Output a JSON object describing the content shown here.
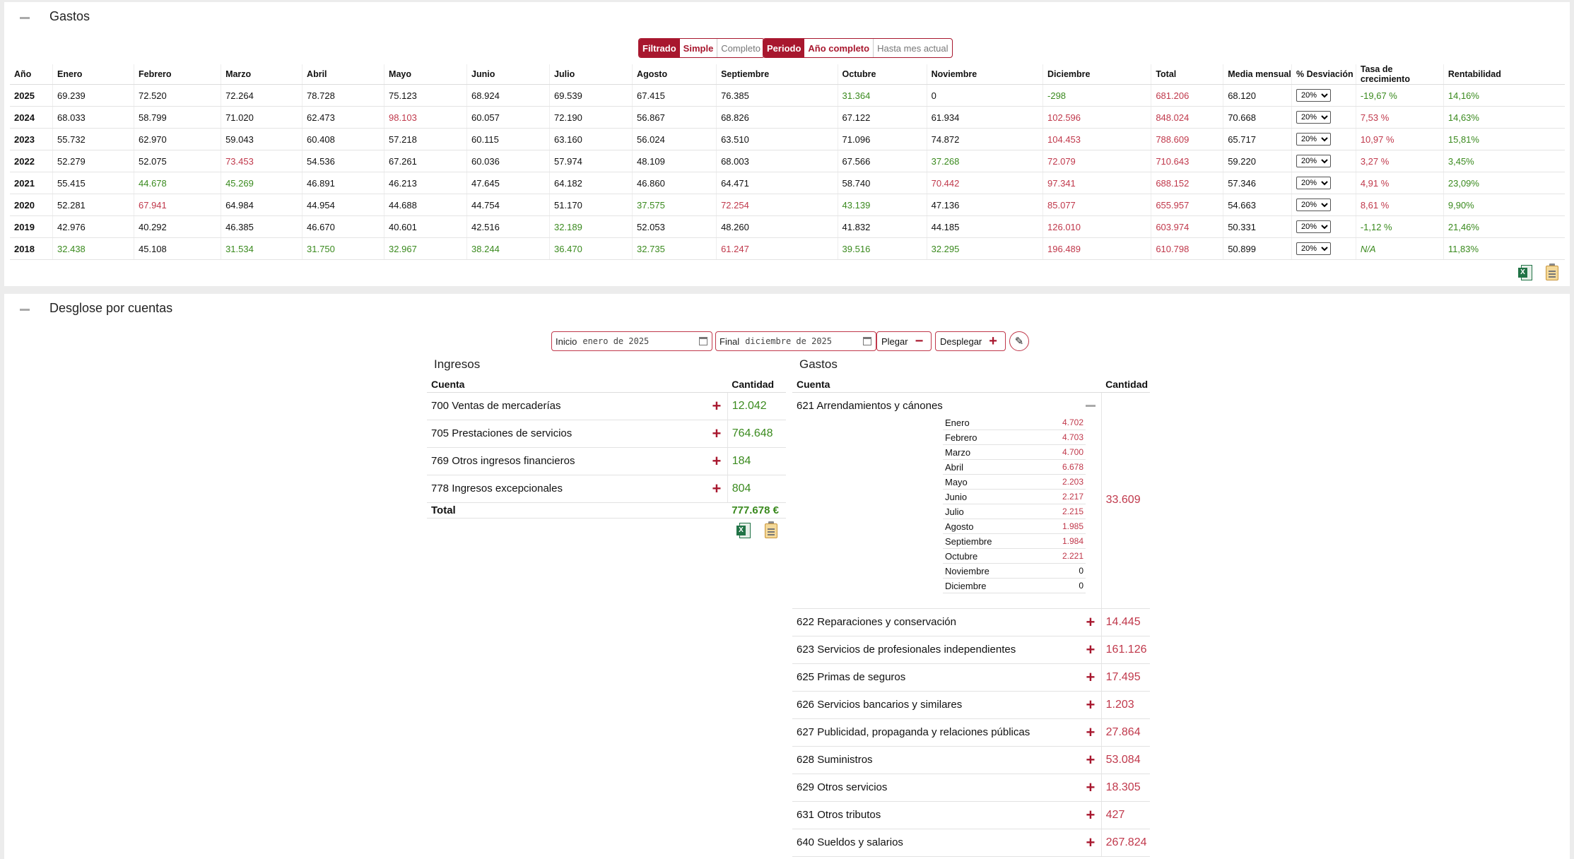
{
  "gastos": {
    "title": "Gastos",
    "filter": {
      "label": "Filtrado",
      "options": [
        "Simple",
        "Completo"
      ],
      "selected": "Simple"
    },
    "period": {
      "label": "Periodo",
      "options": [
        "Año completo",
        "Hasta mes actual"
      ],
      "selected": "Año completo"
    },
    "columns": [
      "Año",
      "Enero",
      "Febrero",
      "Marzo",
      "Abril",
      "Mayo",
      "Junio",
      "Julio",
      "Agosto",
      "Septiembre",
      "Octubre",
      "Noviembre",
      "Diciembre",
      "Total",
      "Media mensual",
      "% Desviación",
      "Tasa de crecimiento",
      "Rentabilidad"
    ],
    "rows": [
      {
        "year": "2025",
        "months": [
          "69.239",
          "72.520",
          "72.264",
          "78.728",
          "75.123",
          "68.924",
          "69.539",
          "67.415",
          "76.385",
          "31.364",
          "0",
          "-298"
        ],
        "mcolors": [
          "",
          "",
          "",
          "",
          "",
          "",
          "",
          "",
          "",
          "g",
          "",
          "g"
        ],
        "total": "681.206",
        "media": "68.120",
        "desv": "20%",
        "tasa": "-19,67 %",
        "tasa_color": "g",
        "rent": "14,16%"
      },
      {
        "year": "2024",
        "months": [
          "68.033",
          "58.799",
          "71.020",
          "62.473",
          "98.103",
          "60.057",
          "72.190",
          "56.867",
          "68.826",
          "67.122",
          "61.934",
          "102.596"
        ],
        "mcolors": [
          "",
          "",
          "",
          "",
          "r",
          "",
          "",
          "",
          "",
          "",
          "",
          "r"
        ],
        "total": "848.024",
        "media": "70.668",
        "desv": "20%",
        "tasa": "7,53 %",
        "tasa_color": "r",
        "rent": "14,63%"
      },
      {
        "year": "2023",
        "months": [
          "55.732",
          "62.970",
          "59.043",
          "60.408",
          "57.218",
          "60.115",
          "63.160",
          "56.024",
          "63.510",
          "71.096",
          "74.872",
          "104.453"
        ],
        "mcolors": [
          "",
          "",
          "",
          "",
          "",
          "",
          "",
          "",
          "",
          "",
          "",
          "r"
        ],
        "total": "788.609",
        "media": "65.717",
        "desv": "20%",
        "tasa": "10,97 %",
        "tasa_color": "r",
        "rent": "15,81%"
      },
      {
        "year": "2022",
        "months": [
          "52.279",
          "52.075",
          "73.453",
          "54.536",
          "67.261",
          "60.036",
          "57.974",
          "48.109",
          "68.003",
          "67.566",
          "37.268",
          "72.079"
        ],
        "mcolors": [
          "",
          "",
          "r",
          "",
          "",
          "",
          "",
          "",
          "",
          "",
          "g",
          "r"
        ],
        "total": "710.643",
        "media": "59.220",
        "desv": "20%",
        "tasa": "3,27 %",
        "tasa_color": "r",
        "rent": "3,45%"
      },
      {
        "year": "2021",
        "months": [
          "55.415",
          "44.678",
          "45.269",
          "46.891",
          "46.213",
          "47.645",
          "64.182",
          "46.860",
          "64.471",
          "58.740",
          "70.442",
          "97.341"
        ],
        "mcolors": [
          "",
          "g",
          "g",
          "",
          "",
          "",
          "",
          "",
          "",
          "",
          "r",
          "r"
        ],
        "total": "688.152",
        "media": "57.346",
        "desv": "20%",
        "tasa": "4,91 %",
        "tasa_color": "r",
        "rent": "23,09%"
      },
      {
        "year": "2020",
        "months": [
          "52.281",
          "67.941",
          "64.984",
          "44.954",
          "44.688",
          "44.754",
          "51.170",
          "37.575",
          "72.254",
          "43.139",
          "47.136",
          "85.077"
        ],
        "mcolors": [
          "",
          "r",
          "",
          "",
          "",
          "",
          "",
          "g",
          "r",
          "g",
          "",
          "r"
        ],
        "total": "655.957",
        "media": "54.663",
        "desv": "20%",
        "tasa": "8,61 %",
        "tasa_color": "r",
        "rent": "9,90%"
      },
      {
        "year": "2019",
        "months": [
          "42.976",
          "40.292",
          "46.385",
          "46.670",
          "40.601",
          "42.516",
          "32.189",
          "52.053",
          "48.260",
          "41.832",
          "44.185",
          "126.010"
        ],
        "mcolors": [
          "",
          "",
          "",
          "",
          "",
          "",
          "g",
          "",
          "",
          "",
          "",
          "r"
        ],
        "total": "603.974",
        "media": "50.331",
        "desv": "20%",
        "tasa": "-1,12 %",
        "tasa_color": "g",
        "rent": "21,46%"
      },
      {
        "year": "2018",
        "months": [
          "32.438",
          "45.108",
          "31.534",
          "31.750",
          "32.967",
          "38.244",
          "36.470",
          "32.735",
          "61.247",
          "39.516",
          "32.295",
          "196.489"
        ],
        "mcolors": [
          "g",
          "",
          "g",
          "g",
          "g",
          "g",
          "g",
          "g",
          "r",
          "g",
          "g",
          "r"
        ],
        "total": "610.798",
        "media": "50.899",
        "desv": "20%",
        "tasa": "N/A",
        "tasa_color": "g",
        "rent": "11,83%"
      }
    ],
    "icons": [
      "excel-icon",
      "clipboard-icon"
    ]
  },
  "desglose": {
    "title": "Desglose por cuentas",
    "inicio_label": "Inicio",
    "inicio_value": "enero de 2025",
    "final_label": "Final",
    "final_value": "diciembre de 2025",
    "plegar": "Plegar",
    "desplegar": "Desplegar",
    "ingresos": {
      "title": "Ingresos",
      "col_cuenta": "Cuenta",
      "col_cantidad": "Cantidad",
      "items": [
        {
          "cuenta": "700 Ventas de mercaderías",
          "cantidad": "12.042"
        },
        {
          "cuenta": "705 Prestaciones de servicios",
          "cantidad": "764.648"
        },
        {
          "cuenta": "769 Otros ingresos financieros",
          "cantidad": "184"
        },
        {
          "cuenta": "778 Ingresos excepcionales",
          "cantidad": "804"
        }
      ],
      "total_label": "Total",
      "total_value": "777.678 €"
    },
    "gastos": {
      "title": "Gastos",
      "col_cuenta": "Cuenta",
      "col_cantidad": "Cantidad",
      "expanded": {
        "cuenta": "621 Arrendamientos y cánones",
        "cantidad": "33.609",
        "months": [
          {
            "m": "Enero",
            "v": "4.702"
          },
          {
            "m": "Febrero",
            "v": "4.703"
          },
          {
            "m": "Marzo",
            "v": "4.700"
          },
          {
            "m": "Abril",
            "v": "6.678"
          },
          {
            "m": "Mayo",
            "v": "2.203"
          },
          {
            "m": "Junio",
            "v": "2.217"
          },
          {
            "m": "Julio",
            "v": "2.215"
          },
          {
            "m": "Agosto",
            "v": "1.985"
          },
          {
            "m": "Septiembre",
            "v": "1.984"
          },
          {
            "m": "Octubre",
            "v": "2.221"
          },
          {
            "m": "Noviembre",
            "v": "0"
          },
          {
            "m": "Diciembre",
            "v": "0"
          }
        ]
      },
      "items": [
        {
          "cuenta": "622 Reparaciones y conservación",
          "cantidad": "14.445"
        },
        {
          "cuenta": "623 Servicios de profesionales independientes",
          "cantidad": "161.126"
        },
        {
          "cuenta": "625 Primas de seguros",
          "cantidad": "17.495"
        },
        {
          "cuenta": "626 Servicios bancarios y similares",
          "cantidad": "1.203"
        },
        {
          "cuenta": "627 Publicidad, propaganda y relaciones públicas",
          "cantidad": "27.864"
        },
        {
          "cuenta": "628 Suministros",
          "cantidad": "53.084"
        },
        {
          "cuenta": "629 Otros servicios",
          "cantidad": "18.305"
        },
        {
          "cuenta": "631 Otros tributos",
          "cantidad": "427"
        },
        {
          "cuenta": "640 Sueldos y salarios",
          "cantidad": "267.824"
        }
      ]
    }
  },
  "colors": {
    "accent": "#a8172e",
    "red_value": "#c0384b",
    "green_value": "#3a8a1e"
  }
}
